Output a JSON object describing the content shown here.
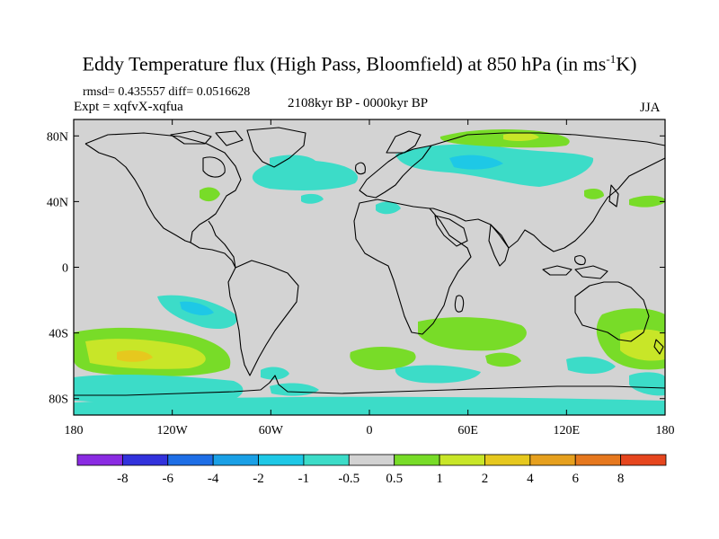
{
  "header": {
    "title_main": "Eddy Temperature flux (High Pass, Bloomfield) at 850 hPa (in ms",
    "title_sup": "-1",
    "title_end": "K)",
    "stats": "rmsd= 0.435557 diff= 0.0516628",
    "experiment": "Expt = xqfvX-xqfua",
    "period": "2108kyr BP - 0000kyr BP",
    "season": "JJA"
  },
  "map": {
    "background_color": "#d3d3d3",
    "lat_labels": [
      {
        "label": "80N",
        "lat": 80
      },
      {
        "label": "40N",
        "lat": 40
      },
      {
        "label": "0",
        "lat": 0
      },
      {
        "label": "40S",
        "lat": -40
      },
      {
        "label": "80S",
        "lat": -80
      }
    ],
    "lon_labels": [
      {
        "label": "180",
        "lon": -180
      },
      {
        "label": "120W",
        "lon": -120
      },
      {
        "label": "60W",
        "lon": -60
      },
      {
        "label": "0",
        "lon": 0
      },
      {
        "label": "60E",
        "lon": 60
      },
      {
        "label": "120E",
        "lon": 120
      },
      {
        "label": "180",
        "lon": 180
      }
    ],
    "lon_range": [
      -180,
      180
    ],
    "lat_range": [
      -90,
      90
    ]
  },
  "colorbar": {
    "colors": [
      "#8a2be2",
      "#3232dc",
      "#1e6ee6",
      "#1aa0e6",
      "#1ec8e6",
      "#3cdcc8",
      "#d2d2d2",
      "#78dc28",
      "#c8e628",
      "#e6c81e",
      "#e6a01e",
      "#e6781e",
      "#e6461e"
    ],
    "labels": [
      "-8",
      "-6",
      "-4",
      "-2",
      "-1",
      "-0.5",
      "0.5",
      "1",
      "2",
      "4",
      "6",
      "8"
    ]
  }
}
